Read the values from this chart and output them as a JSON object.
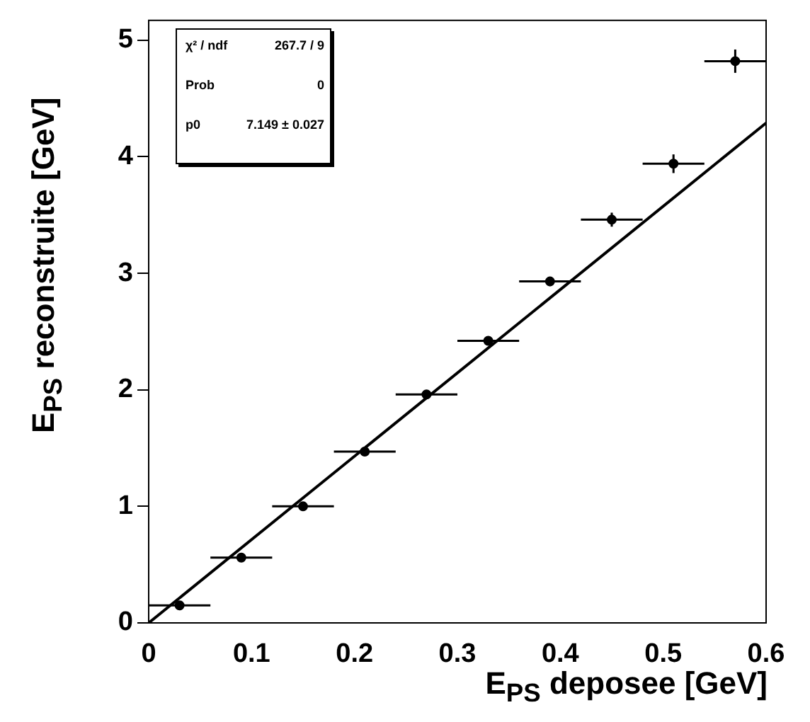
{
  "chart_data": {
    "type": "scatter",
    "xlabel": "E$_{PS}$ deposee [GeV]",
    "ylabel": "E$_{PS}$ reconstruite [GeV]",
    "x": [
      0.03,
      0.09,
      0.15,
      0.21,
      0.27,
      0.33,
      0.39,
      0.45,
      0.51,
      0.57
    ],
    "series": [
      {
        "color": "#000000",
        "values": [
          0.15,
          0.56,
          1.0,
          1.47,
          1.96,
          2.42,
          2.93,
          3.46,
          3.94,
          4.82
        ],
        "errors": [
          0.02,
          0.02,
          0.02,
          0.02,
          0.03,
          0.03,
          0.04,
          0.06,
          0.08,
          0.1
        ],
        "xerrors": [
          0.03,
          0.03,
          0.03,
          0.03,
          0.03,
          0.03,
          0.03,
          0.03,
          0.03,
          0.03
        ],
        "marker": "circle"
      },
      {
        "type": "line",
        "color": "#000000",
        "x": [
          0,
          0.6
        ],
        "values": [
          0,
          4.29
        ],
        "marker": "none",
        "line_style": "solid"
      }
    ],
    "xlim": [
      0,
      0.6
    ],
    "xticks": [
      0,
      0.1,
      0.2,
      0.3,
      0.4,
      0.5,
      0.6
    ],
    "ylim": [
      0,
      5.17
    ],
    "yticks": [
      0,
      1,
      2,
      3,
      4,
      5
    ],
    "grid": false,
    "legend": false,
    "annotations": [
      "χ² / ndf",
      "267.7 / 9",
      "Prob",
      "0",
      "p0",
      "7.149 ± 0.027"
    ]
  }
}
